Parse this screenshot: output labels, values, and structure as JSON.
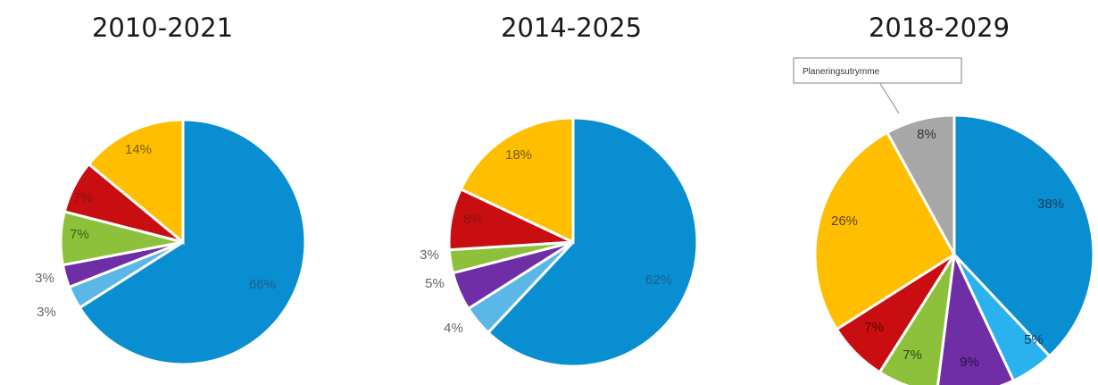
{
  "chart_data": [
    {
      "type": "pie",
      "title": "2010-2021",
      "slices": [
        {
          "value": 66,
          "label": "66%",
          "color": "#0a8ed2",
          "label_color": "#1d5f86"
        },
        {
          "value": 3,
          "label": "3%",
          "color": "#5ab7e8",
          "label_color": "#666666"
        },
        {
          "value": 3,
          "label": "3%",
          "color": "#6f2ea6",
          "label_color": "#666666"
        },
        {
          "value": 7,
          "label": "7%",
          "color": "#8dc13c",
          "label_color": "#3d5f16"
        },
        {
          "value": 7,
          "label": "7%",
          "color": "#c80e10",
          "label_color": "#8c1214"
        },
        {
          "value": 14,
          "label": "14%",
          "color": "#ffbf00",
          "label_color": "#7a5c00"
        }
      ]
    },
    {
      "type": "pie",
      "title": "2014-2025",
      "slices": [
        {
          "value": 62,
          "label": "62%",
          "color": "#0a8ed2",
          "label_color": "#1d5f86"
        },
        {
          "value": 4,
          "label": "4%",
          "color": "#5ab7e8",
          "label_color": "#666666"
        },
        {
          "value": 5,
          "label": "5%",
          "color": "#6f2ea6",
          "label_color": "#666666"
        },
        {
          "value": 3,
          "label": "3%",
          "color": "#8dc13c",
          "label_color": "#666666"
        },
        {
          "value": 8,
          "label": "8%",
          "color": "#c80e10",
          "label_color": "#8c1214"
        },
        {
          "value": 18,
          "label": "18%",
          "color": "#ffbf00",
          "label_color": "#7a5c00"
        }
      ]
    },
    {
      "type": "pie",
      "title": "2018-2029",
      "annotation": "Planeringsutrymme",
      "slices": [
        {
          "value": 38,
          "label": "38%",
          "color": "#0a8ed2",
          "label_color": "#16405e"
        },
        {
          "value": 5,
          "label": "5%",
          "color": "#29b2ee",
          "label_color": "#16405e"
        },
        {
          "value": 9,
          "label": "9%",
          "color": "#6f2ea6",
          "label_color": "#2a0f45"
        },
        {
          "value": 7,
          "label": "7%",
          "color": "#8dc13c",
          "label_color": "#2d4a10"
        },
        {
          "value": 7,
          "label": "7%",
          "color": "#c80e10",
          "label_color": "#5a0506"
        },
        {
          "value": 26,
          "label": "26%",
          "color": "#ffbf00",
          "label_color": "#5e4500"
        },
        {
          "value": 8,
          "label": "8%",
          "color": "#a7a7a7",
          "label_color": "#333333"
        }
      ]
    }
  ]
}
